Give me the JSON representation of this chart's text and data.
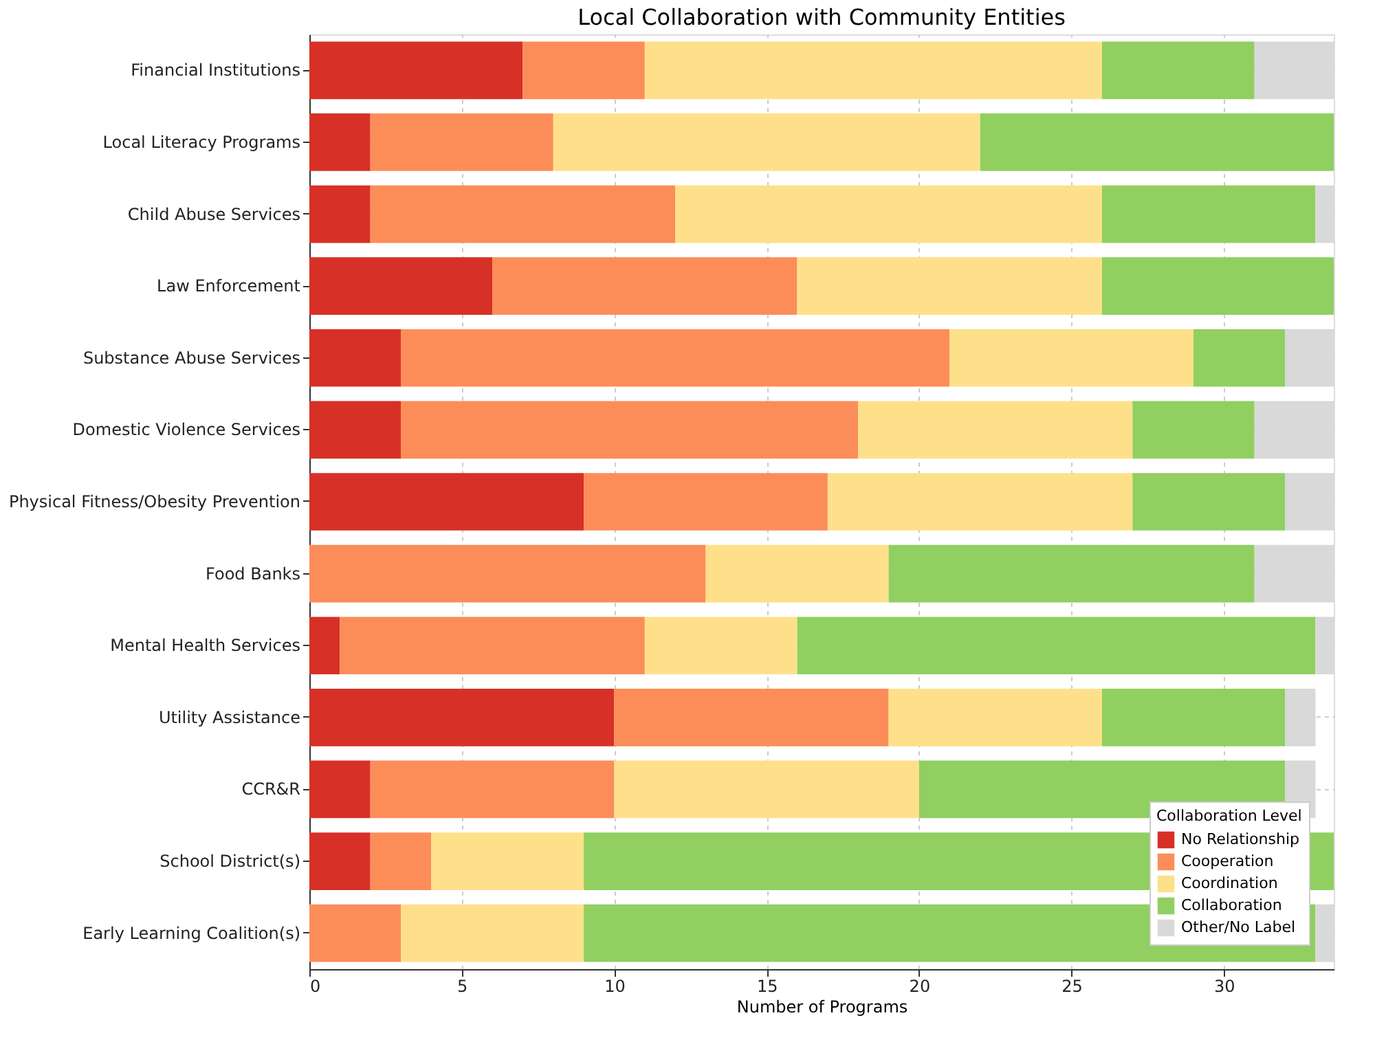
{
  "chart_data": {
    "type": "bar",
    "orientation": "horizontal",
    "stacked": true,
    "title": "Local Collaboration with Community Entities",
    "xlabel": "Number of Programs",
    "legend_title": "Collaboration Level",
    "legend": "bottom right",
    "grid": true,
    "categories": [
      "Financial Institutions",
      "Local Literacy Programs",
      "Child Abuse Services",
      "Law Enforcement",
      "Substance Abuse Services",
      "Domestic Violence Services",
      "Physical Fitness/Obesity Prevention",
      "Food Banks",
      "Mental Health Services",
      "Utility Assistance",
      "CCR&R",
      "School District(s)",
      "Early Learning Coalition(s)"
    ],
    "xlim": [
      0,
      33.6
    ],
    "xticks": [
      0,
      5,
      10,
      15,
      20,
      25,
      30
    ],
    "series": [
      {
        "name": "No Relationship",
        "color": "#d73027",
        "values": [
          7,
          2,
          2,
          6,
          3,
          3,
          9,
          null,
          1,
          10,
          2,
          2,
          null
        ]
      },
      {
        "name": "Cooperation",
        "color": "#fc8d59",
        "values": [
          4,
          6,
          10,
          10,
          18,
          15,
          8,
          13,
          10,
          9,
          8,
          2,
          3
        ]
      },
      {
        "name": "Coordination",
        "color": "#fee08b",
        "values": [
          15,
          14,
          14,
          10,
          8,
          9,
          10,
          6,
          5,
          7,
          10,
          5,
          6
        ]
      },
      {
        "name": "Collaboration",
        "color": "#91cf60",
        "values": [
          5,
          11.6,
          7,
          7.6,
          3,
          4,
          5,
          12,
          17,
          6,
          12,
          24.6,
          24
        ]
      },
      {
        "name": "Other/No Label",
        "color": "#d9d9d9",
        "values": [
          2.6,
          null,
          0.6,
          null,
          1.6,
          2.6,
          1.6,
          2.6,
          0.6,
          1,
          1,
          null,
          0.6
        ]
      }
    ]
  }
}
